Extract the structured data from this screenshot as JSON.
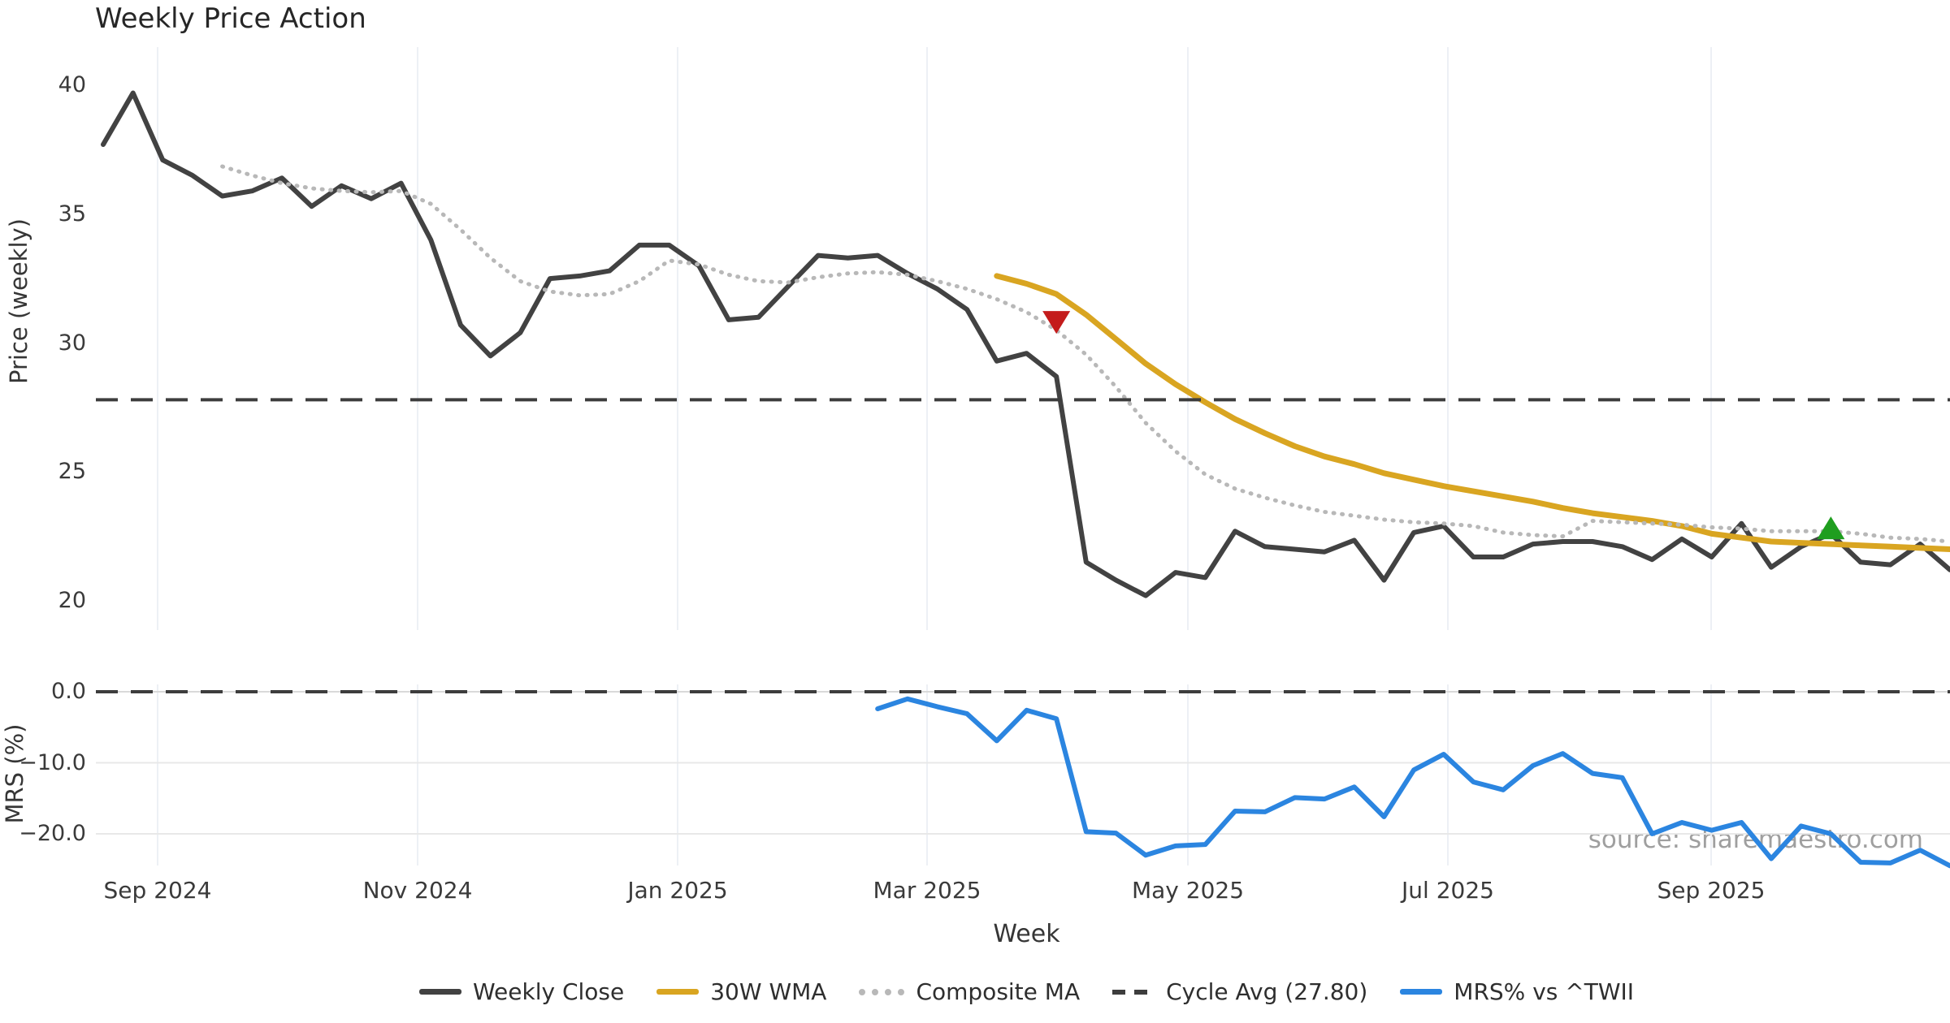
{
  "chart_data": {
    "type": "line",
    "title": "Weekly Price Action",
    "xlabel": "Week",
    "watermark": "source: sharemaestro.com",
    "xticks": [
      "Sep 2024",
      "Nov 2024",
      "Jan 2025",
      "Mar 2025",
      "May 2025",
      "Jul 2025",
      "Sep 2025"
    ],
    "panels": [
      {
        "ylabel": "Price (weekly)",
        "ylim": [
          19.0,
          41.5
        ],
        "yticks": [
          {
            "label": "40",
            "value": 40
          },
          {
            "label": "35",
            "value": 35
          },
          {
            "label": "30",
            "value": 30
          },
          {
            "label": "25",
            "value": 25
          },
          {
            "label": "20",
            "value": 20
          }
        ]
      },
      {
        "ylabel": "MRS (%)",
        "ylim": [
          -25.5,
          1.0
        ],
        "yticks": [
          {
            "label": "0.0",
            "value": 0
          },
          {
            "label": "−10.0",
            "value": -10
          },
          {
            "label": "−20.0",
            "value": -20
          }
        ]
      }
    ],
    "grid": {
      "vertical_on_month_ticks": true,
      "horizontal_bottom_panel": true
    },
    "series": [
      {
        "name": "Weekly Close",
        "panel": 1,
        "style": "solid",
        "color": "#424242",
        "width": 6,
        "start_index": 0,
        "values": [
          37.7,
          39.7,
          37.1,
          36.5,
          35.7,
          35.9,
          36.4,
          35.3,
          36.1,
          35.6,
          36.2,
          34.0,
          30.7,
          29.5,
          30.4,
          32.5,
          32.6,
          32.8,
          33.8,
          33.8,
          33.0,
          30.9,
          31.0,
          32.2,
          33.4,
          33.3,
          33.4,
          32.7,
          32.1,
          31.3,
          29.3,
          29.6,
          28.7,
          21.5,
          20.8,
          20.2,
          21.1,
          20.9,
          22.7,
          22.1,
          22.0,
          21.9,
          22.35,
          20.8,
          22.65,
          22.9,
          21.7,
          21.7,
          22.2,
          22.3,
          22.3,
          22.1,
          21.6,
          22.4,
          21.7,
          23.0,
          21.3,
          22.1,
          22.6,
          21.5,
          21.4,
          22.2,
          21.2
        ]
      },
      {
        "name": "30W WMA",
        "panel": 1,
        "style": "solid",
        "color": "#d9a521",
        "width": 7,
        "start_index": 30,
        "values": [
          32.6,
          32.3,
          31.9,
          31.1,
          30.15,
          29.2,
          28.4,
          27.7,
          27.05,
          26.5,
          26.0,
          25.6,
          25.3,
          24.95,
          24.7,
          24.45,
          24.25,
          24.05,
          23.85,
          23.6,
          23.4,
          23.25,
          23.1,
          22.9,
          22.6,
          22.45,
          22.3,
          22.25,
          22.2,
          22.15,
          22.1,
          22.05,
          22.0
        ]
      },
      {
        "name": "Composite MA",
        "panel": 1,
        "style": "dotted",
        "color": "#b8b8b8",
        "width": 5,
        "start_index": 4,
        "values": [
          36.85,
          36.5,
          36.2,
          36.0,
          35.9,
          35.85,
          35.9,
          35.4,
          34.4,
          33.3,
          32.4,
          32.0,
          31.85,
          31.9,
          32.4,
          33.2,
          33.05,
          32.65,
          32.4,
          32.35,
          32.55,
          32.7,
          32.75,
          32.65,
          32.4,
          32.1,
          31.7,
          31.2,
          30.5,
          29.55,
          28.3,
          26.9,
          25.8,
          24.9,
          24.35,
          24.0,
          23.7,
          23.45,
          23.3,
          23.15,
          23.05,
          23.0,
          22.9,
          22.65,
          22.55,
          22.5,
          23.1,
          23.05,
          23.0,
          22.95,
          22.85,
          22.8,
          22.7,
          22.7,
          22.7,
          22.6,
          22.45,
          22.4,
          22.3
        ]
      },
      {
        "name": "Cycle Avg (27.80)",
        "panel": 1,
        "style": "dashed",
        "color": "#3d3d3d",
        "width": 4,
        "hline_value": 27.8
      },
      {
        "name": "MRS% vs ^TWII",
        "panel": 2,
        "style": "solid",
        "color": "#2b85e0",
        "width": 6,
        "start_index": 26,
        "values": [
          -2.4,
          -1.0,
          -2.1,
          -3.1,
          -6.9,
          -2.6,
          -3.8,
          -19.7,
          -19.9,
          -23.0,
          -21.7,
          -21.5,
          -16.8,
          -16.9,
          -14.9,
          -15.1,
          -13.4,
          -17.6,
          -11.0,
          -8.8,
          -12.7,
          -13.8,
          -10.4,
          -8.7,
          -11.5,
          -12.1,
          -20.0,
          -18.4,
          -19.5,
          -18.4,
          -23.5,
          -18.9,
          -20.0,
          -24.0,
          -24.1,
          -22.3,
          -24.5
        ]
      },
      {
        "name": "MRS zero line",
        "panel": 2,
        "style": "dashed",
        "color": "#3d3d3d",
        "width": 4,
        "hline_value": 0
      }
    ],
    "markers": [
      {
        "name": "sell-signal-marker",
        "shape": "triangle-down",
        "color": "#c41c1c",
        "week_index": 32,
        "price": 30.8
      },
      {
        "name": "buy-signal-marker",
        "shape": "triangle-up",
        "color": "#1f9e1f",
        "week_index": 58,
        "price": 22.8
      }
    ],
    "legend": [
      {
        "label": "Weekly Close",
        "style": "solid",
        "color": "#424242"
      },
      {
        "label": "30W WMA",
        "style": "solid",
        "color": "#d9a521"
      },
      {
        "label": "Composite MA",
        "style": "dotted",
        "color": "#b8b8b8"
      },
      {
        "label": "Cycle Avg (27.80)",
        "style": "dashed",
        "color": "#3d3d3d"
      },
      {
        "label": "MRS% vs ^TWII",
        "style": "solid",
        "color": "#2b85e0"
      }
    ]
  }
}
